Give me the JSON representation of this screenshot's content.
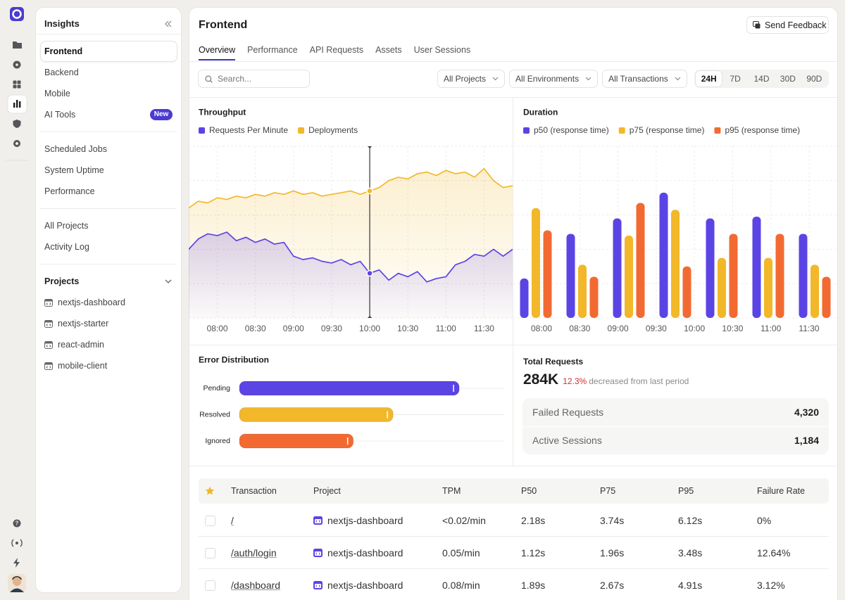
{
  "sidebar": {
    "title": "Insights",
    "nav": [
      "Frontend",
      "Backend",
      "Mobile",
      "AI Tools"
    ],
    "badge": "New",
    "nav2": [
      "Scheduled Jobs",
      "System Uptime",
      "Performance"
    ],
    "nav3": [
      "All Projects",
      "Activity Log"
    ],
    "projects_title": "Projects",
    "projects": [
      "nextjs-dashboard",
      "nextjs-starter",
      "react-admin",
      "mobile-client"
    ]
  },
  "header": {
    "title": "Frontend",
    "feedback": "Send Feedback",
    "tabs": [
      "Overview",
      "Performance",
      "API Requests",
      "Assets",
      "User Sessions"
    ]
  },
  "toolbar": {
    "search": "Search...",
    "filters": [
      "All Projects",
      "All Environments",
      "All Transactions"
    ],
    "ranges": [
      "24H",
      "7D",
      "14D",
      "30D",
      "90D"
    ]
  },
  "chart_data": [
    {
      "type": "line",
      "title": "Throughput",
      "categories": [
        null,
        null,
        null,
        "08:00",
        null,
        null,
        null,
        "08:30",
        null,
        null,
        null,
        "09:00",
        null,
        null,
        null,
        "09:30",
        null,
        null,
        null,
        "10:00",
        null,
        null,
        null,
        "10:30",
        null,
        null,
        null,
        "11:00",
        null,
        null,
        null,
        "11:30",
        null,
        null,
        null
      ],
      "series": [
        {
          "name": "Requests Per Minute",
          "color": "#5b44e4",
          "values": [
            40,
            46,
            49,
            48,
            50,
            45,
            47,
            44,
            46,
            43,
            44,
            36,
            34,
            35,
            33,
            32,
            34,
            31,
            33,
            26,
            28,
            22,
            26,
            24,
            27,
            21,
            23,
            24,
            31,
            33,
            37,
            36,
            40,
            36,
            40
          ]
        },
        {
          "name": "Deployments",
          "color": "#f2b82a",
          "values": [
            64,
            68,
            67,
            70,
            69,
            71,
            70,
            72,
            71,
            73,
            72,
            74,
            72,
            73,
            71,
            72,
            73,
            74,
            72,
            74,
            76,
            80,
            82,
            81,
            84,
            85,
            83,
            86,
            84,
            85,
            82,
            87,
            80,
            76,
            77
          ]
        }
      ],
      "ylim": [
        0,
        100
      ],
      "grid": true
    },
    {
      "type": "bar",
      "title": "Duration",
      "categories": [
        null,
        null,
        null,
        null,
        null,
        null,
        null
      ],
      "x_labels": [
        "08:00",
        "08:30",
        "09:00",
        "09:30",
        "10:00",
        "10:30",
        "11:00",
        "11:30"
      ],
      "series": [
        {
          "name": "p50 (response time)",
          "color": "#5b44e4",
          "values": [
            23,
            49,
            58,
            73,
            58,
            59,
            49
          ]
        },
        {
          "name": "p75 (response time)",
          "color": "#f2b82a",
          "values": [
            64,
            31,
            48,
            63,
            35,
            35,
            31
          ]
        },
        {
          "name": "p95 (response time)",
          "color": "#f26a32",
          "values": [
            51,
            24,
            67,
            30,
            49,
            49,
            24
          ]
        }
      ],
      "ylim": [
        0,
        100
      ],
      "grid": true
    },
    {
      "type": "barh",
      "title": "Error Distribution",
      "categories": [
        "Pending",
        "Resolved",
        "Ignored"
      ],
      "values": [
        83,
        58,
        43
      ],
      "colors": [
        "#5b44e4",
        "#f2b82a",
        "#f26a32"
      ],
      "xlim": [
        0,
        100
      ]
    }
  ],
  "summary": {
    "title": "Total Requests",
    "value": "284K",
    "change": "12.3%",
    "note": "decreased from last period",
    "stats": [
      {
        "label": "Failed Requests",
        "value": "4,320"
      },
      {
        "label": "Active Sessions",
        "value": "1,184"
      }
    ]
  },
  "table": {
    "columns": [
      "Transaction",
      "Project",
      "TPM",
      "P50",
      "P75",
      "P95",
      "Failure Rate"
    ],
    "rows": [
      [
        "/",
        "nextjs-dashboard",
        "<0.02/min",
        "2.18s",
        "3.74s",
        "6.12s",
        "0%"
      ],
      [
        "/auth/login",
        "nextjs-dashboard",
        "0.05/min",
        "1.12s",
        "1.96s",
        "3.48s",
        "12.64%"
      ],
      [
        "/dashboard",
        "nextjs-dashboard",
        "0.08/min",
        "1.89s",
        "2.67s",
        "4.91s",
        "3.12%"
      ]
    ]
  }
}
